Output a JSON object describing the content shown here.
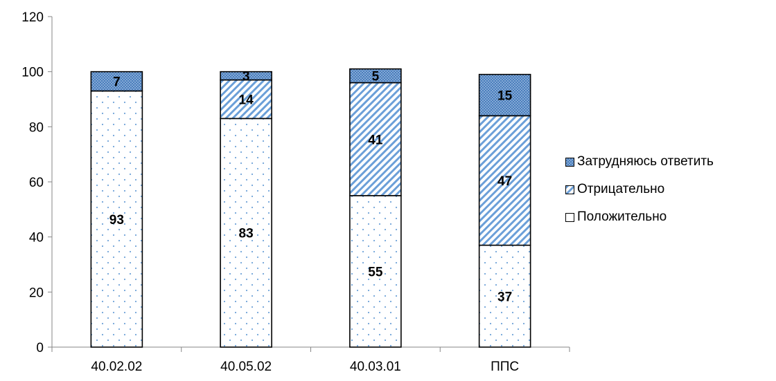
{
  "chart_data": {
    "type": "bar",
    "stacked": true,
    "categories": [
      "40.02.02",
      "40.05.02",
      "40.03.01",
      "ППС"
    ],
    "series": [
      {
        "name": "Положительно",
        "values": [
          93,
          83,
          55,
          37
        ],
        "pattern": "dots",
        "color": "#5b9bd5"
      },
      {
        "name": "Отрицательно",
        "values": [
          null,
          14,
          41,
          47
        ],
        "pattern": "diagonal-hatch",
        "color": "#5b9bd5"
      },
      {
        "name": "Затрудняюсь ответить",
        "values": [
          7,
          3,
          5,
          15
        ],
        "pattern": "dense-dots",
        "color": "#4f81bd"
      }
    ],
    "yticks": [
      0,
      20,
      40,
      60,
      80,
      100,
      120
    ],
    "ylim": [
      0,
      120
    ],
    "legend_position": "right",
    "legend_order": [
      "Затрудняюсь ответить",
      "Отрицательно",
      "Положительно"
    ],
    "grid": false
  }
}
